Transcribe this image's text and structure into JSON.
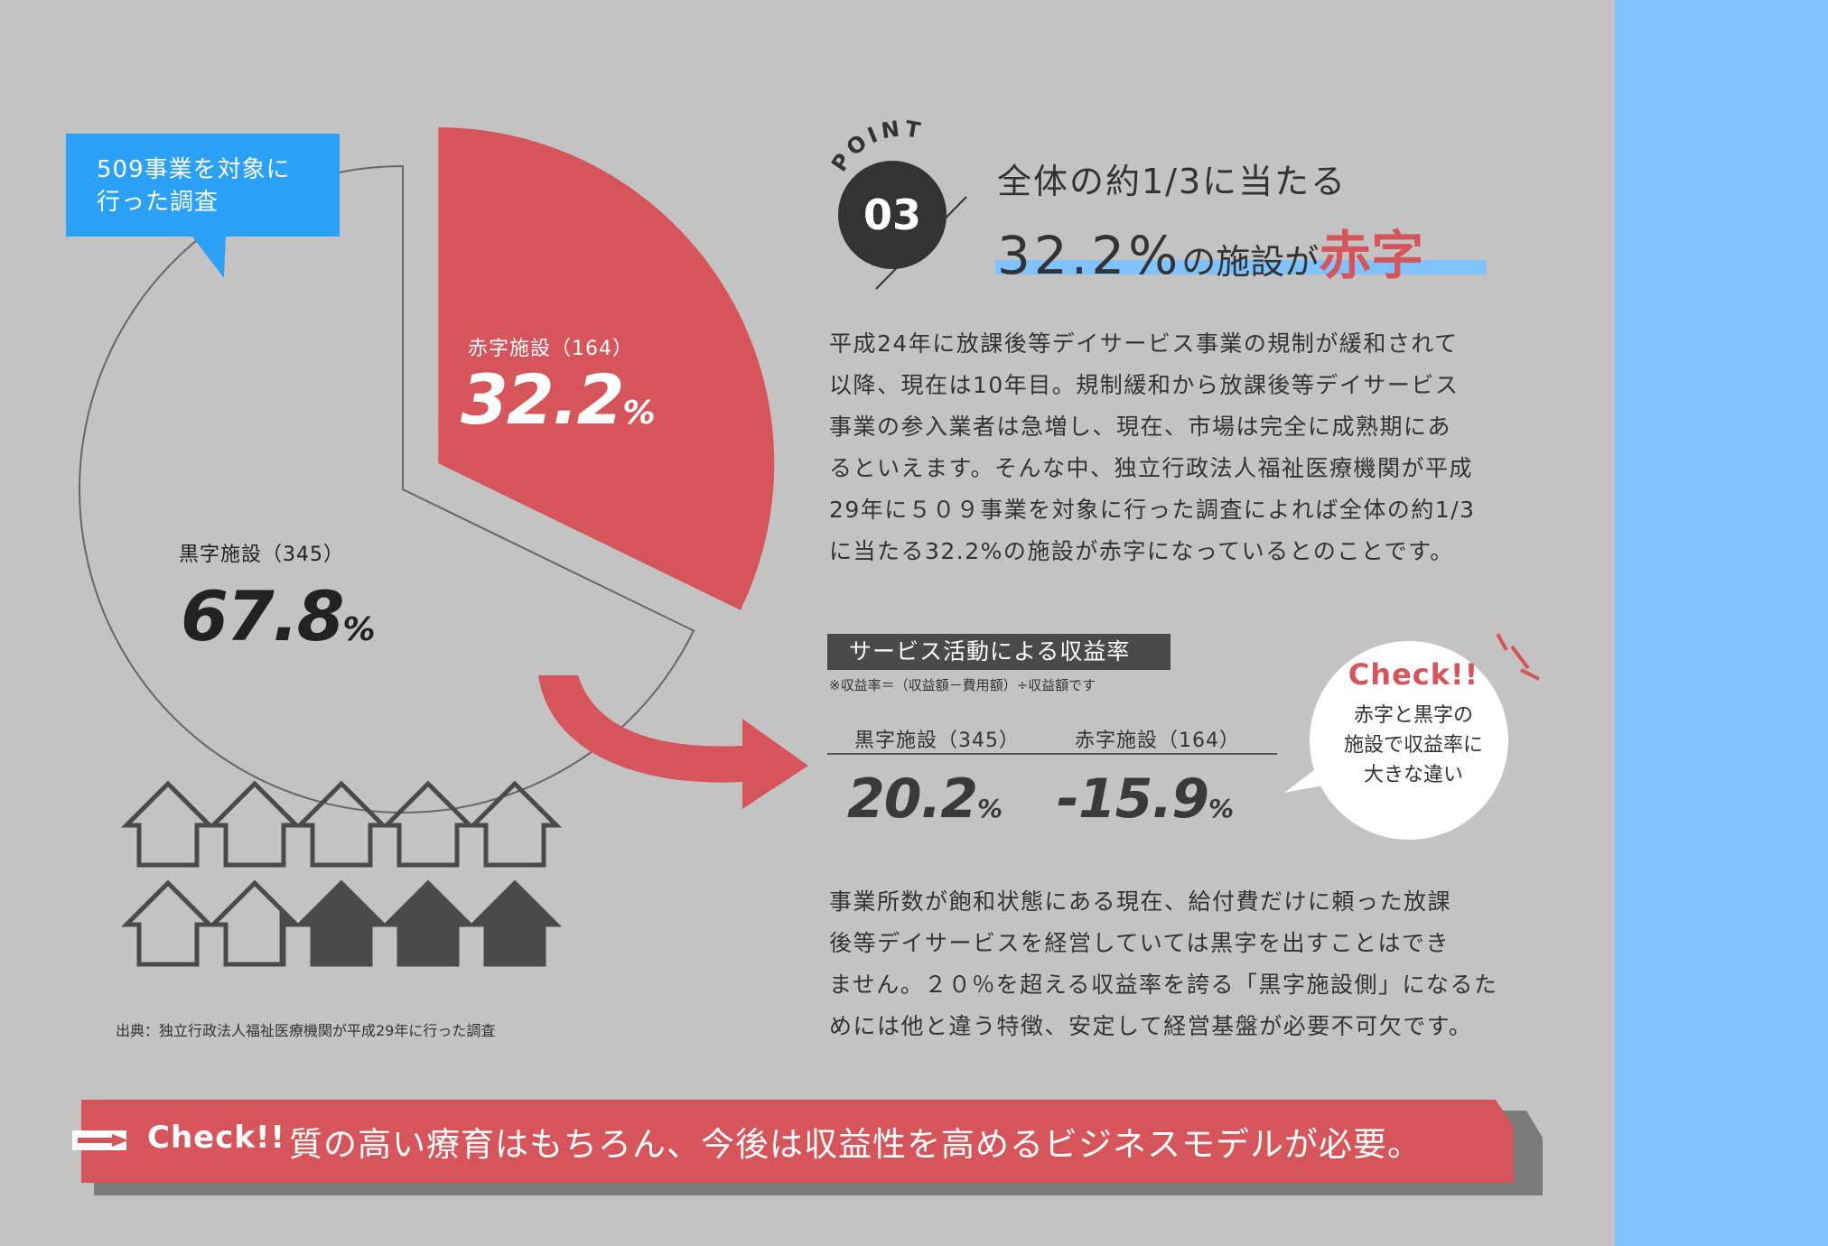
{
  "callout": {
    "lines": [
      "509事業を対象に",
      "行った調査"
    ]
  },
  "chart_data": [
    {
      "type": "pie",
      "slices": [
        {
          "label": "赤字施設（164）",
          "count": 164,
          "value": 32.2,
          "display": "32.2",
          "unit": "%",
          "color": "#d5555a"
        },
        {
          "label": "黒字施設（345）",
          "count": 345,
          "value": 67.8,
          "display": "67.8",
          "unit": "%",
          "color": "#c3c3c3"
        }
      ]
    },
    {
      "type": "pictograph",
      "total_icons": 10,
      "filled_icons": 3.2,
      "filled_color": "#4a4a4a"
    }
  ],
  "source": "出典：独立行政法人福祉医療機関が平成29年に行った調査",
  "point": {
    "badge_word": "POINT",
    "number": "03",
    "title": "全体の約1/3に当たる",
    "sub_big": "32.2%",
    "sub_mid1": "の施設",
    "sub_mid2": "が",
    "sub_red": "赤字"
  },
  "para1": [
    "平成24年に放課後等デイサービス事業の規制が緩和されて",
    "以降、現在は10年目。規制緩和から放課後等デイサービス",
    "事業の参入業者は急増し、現在、市場は完全に成熟期にあ",
    "るといえます。そんな中、独立行政法人福祉医療機関が平成",
    "29年に５０９事業を対象に行った調査によれば全体の約1/3",
    "に当たる32.2%の施設が赤字になっているとのことです。"
  ],
  "revenue": {
    "title": "サービス活動による収益率",
    "note": "※収益率＝（収益額－費用額）÷収益額です",
    "black_label": "黒字施設（345）",
    "red_label": "赤字施設（164）",
    "black_value": "20.2",
    "red_value": "-15.9",
    "unit": "%"
  },
  "check_bubble": {
    "title": "Check!!",
    "lines": [
      "赤字と黒字の",
      "施設で収益率に",
      "大きな違い"
    ]
  },
  "para2": [
    "事業所数が飽和状態にある現在、給付費だけに頼った放課",
    "後等デイサービスを経営していては黒字を出すことはでき",
    "ません。２０％を超える収益率を誇る「黒字施設側」になるた",
    "めには他と違う特徴、安定して経営基盤が必要不可欠です。"
  ],
  "banner": {
    "check": "Check!!",
    "message": "質の高い療育はもちろん、今後は収益性を高めるビジネスモデルが必要。"
  },
  "colors": {
    "accent_red": "#d5555a",
    "accent_blue": "#2aa0f7",
    "strip_blue": "#80c2ff",
    "background": "#c3c3c3",
    "dark": "#4a4a4a"
  }
}
